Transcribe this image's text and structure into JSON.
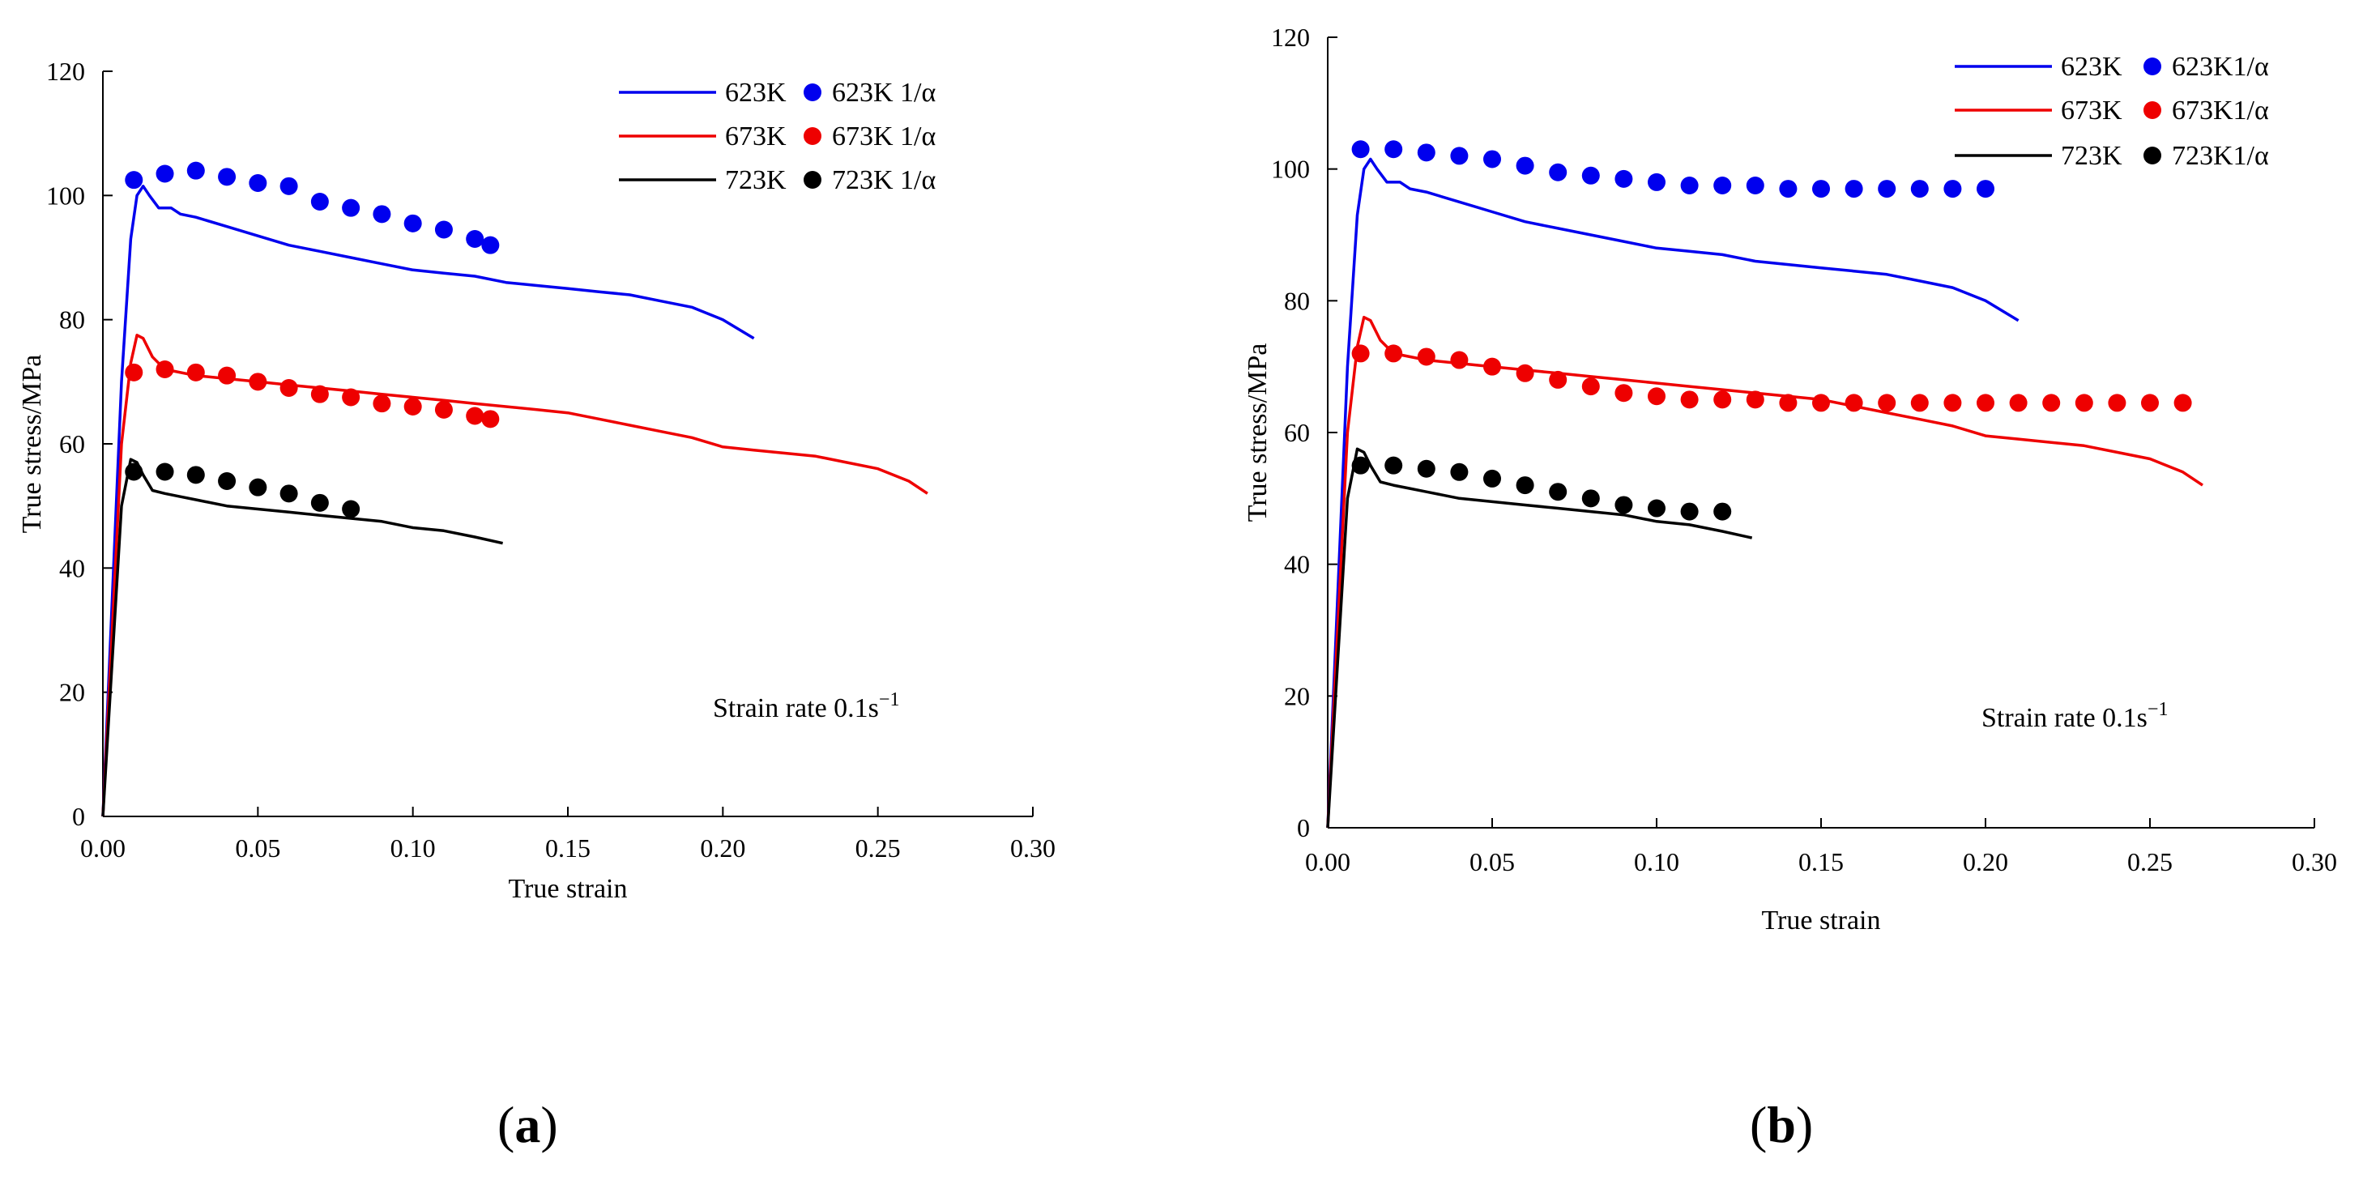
{
  "panels": [
    {
      "label_open": "(",
      "label_letter": "a",
      "label_close": ")",
      "chart_data": {
        "type": "line",
        "xlabel": "True strain",
        "ylabel": "True stress/MPa",
        "xlim": [
          0,
          0.3
        ],
        "ylim": [
          0,
          120
        ],
        "xticks": [
          0.0,
          0.05,
          0.1,
          0.15,
          0.2,
          0.25,
          0.3
        ],
        "xtick_labels": [
          "0.00",
          "0.05",
          "0.10",
          "0.15",
          "0.20",
          "0.25",
          "0.30"
        ],
        "yticks": [
          0,
          20,
          40,
          60,
          80,
          100,
          120
        ],
        "ytick_labels": [
          "0",
          "20",
          "40",
          "60",
          "80",
          "100",
          "120"
        ],
        "annotation": {
          "text": "Strain rate 0.1s",
          "superscript": "−1"
        },
        "legend_position": "top-right",
        "lines": [
          {
            "name": "623K",
            "color": "#0000ee",
            "x": [
              0,
              0.003,
              0.006,
              0.009,
              0.011,
              0.013,
              0.015,
              0.018,
              0.02,
              0.022,
              0.025,
              0.03,
              0.04,
              0.05,
              0.06,
              0.07,
              0.08,
              0.09,
              0.1,
              0.11,
              0.12,
              0.13,
              0.14,
              0.15,
              0.16,
              0.17,
              0.18,
              0.19,
              0.2,
              0.21
            ],
            "y": [
              0,
              35,
              70,
              93,
              100,
              101.5,
              100,
              98,
              98,
              98,
              97,
              96.5,
              95,
              93.5,
              92,
              91,
              90,
              89,
              88,
              87.5,
              87,
              86,
              85.5,
              85,
              84.5,
              84,
              83,
              82,
              80,
              77
            ]
          },
          {
            "name": "673K",
            "color": "#ee0000",
            "x": [
              0,
              0.003,
              0.006,
              0.009,
              0.011,
              0.013,
              0.016,
              0.02,
              0.03,
              0.04,
              0.05,
              0.06,
              0.07,
              0.08,
              0.09,
              0.1,
              0.11,
              0.12,
              0.13,
              0.14,
              0.15,
              0.16,
              0.17,
              0.18,
              0.19,
              0.2,
              0.21,
              0.22,
              0.23,
              0.24,
              0.25,
              0.26,
              0.266
            ],
            "y": [
              0,
              30,
              60,
              73,
              77.5,
              77,
              74,
              72,
              71,
              70.5,
              70,
              69.5,
              69,
              68.5,
              68,
              67.5,
              67,
              66.5,
              66,
              65.5,
              65,
              64,
              63,
              62,
              61,
              59.5,
              59,
              58.5,
              58,
              57,
              56,
              54,
              52
            ]
          },
          {
            "name": "723K",
            "color": "#000000",
            "x": [
              0,
              0.003,
              0.006,
              0.009,
              0.011,
              0.013,
              0.016,
              0.02,
              0.025,
              0.03,
              0.04,
              0.05,
              0.06,
              0.07,
              0.08,
              0.09,
              0.1,
              0.11,
              0.12,
              0.129
            ],
            "y": [
              0,
              25,
              50,
              57.5,
              57,
              55,
              52.5,
              52,
              51.5,
              51,
              50,
              49.5,
              49,
              48.5,
              48,
              47.5,
              46.5,
              46,
              45,
              44
            ]
          }
        ],
        "scatter": [
          {
            "name": "623K 1/α",
            "color": "#0000ee",
            "x": [
              0.01,
              0.02,
              0.03,
              0.04,
              0.05,
              0.06,
              0.07,
              0.08,
              0.09,
              0.1,
              0.11,
              0.12,
              0.125
            ],
            "y": [
              102.5,
              103.5,
              104,
              103,
              102,
              101.5,
              99,
              98,
              97,
              95.5,
              94.5,
              93,
              92
            ]
          },
          {
            "name": "673K 1/α",
            "color": "#ee0000",
            "x": [
              0.01,
              0.02,
              0.03,
              0.04,
              0.05,
              0.06,
              0.07,
              0.08,
              0.09,
              0.1,
              0.11,
              0.12,
              0.125
            ],
            "y": [
              71.5,
              72,
              71.5,
              71,
              70,
              69,
              68,
              67.5,
              66.5,
              66,
              65.5,
              64.5,
              64
            ]
          },
          {
            "name": "723K 1/α",
            "color": "#000000",
            "x": [
              0.01,
              0.02,
              0.03,
              0.04,
              0.05,
              0.06,
              0.07,
              0.08
            ],
            "y": [
              55.5,
              55.5,
              55,
              54,
              53,
              52,
              50.5,
              49.5
            ]
          }
        ]
      }
    },
    {
      "label_open": "(",
      "label_letter": "b",
      "label_close": ")",
      "chart_data": {
        "type": "line",
        "xlabel": "True strain",
        "ylabel": "True stress/MPa",
        "xlim": [
          0,
          0.3
        ],
        "ylim": [
          0,
          120
        ],
        "xticks": [
          0.0,
          0.05,
          0.1,
          0.15,
          0.2,
          0.25,
          0.3
        ],
        "xtick_labels": [
          "0.00",
          "0.05",
          "0.10",
          "0.15",
          "0.20",
          "0.25",
          "0.30"
        ],
        "yticks": [
          0,
          20,
          40,
          60,
          80,
          100,
          120
        ],
        "ytick_labels": [
          "0",
          "20",
          "40",
          "60",
          "80",
          "100",
          "120"
        ],
        "annotation": {
          "text": "Strain rate 0.1s",
          "superscript": "−1"
        },
        "legend_position": "top-right",
        "lines": [
          {
            "name": "623K",
            "color": "#0000ee",
            "x": [
              0,
              0.003,
              0.006,
              0.009,
              0.011,
              0.013,
              0.015,
              0.018,
              0.02,
              0.022,
              0.025,
              0.03,
              0.04,
              0.05,
              0.06,
              0.07,
              0.08,
              0.09,
              0.1,
              0.11,
              0.12,
              0.13,
              0.14,
              0.15,
              0.16,
              0.17,
              0.18,
              0.19,
              0.2,
              0.21
            ],
            "y": [
              0,
              35,
              70,
              93,
              100,
              101.5,
              100,
              98,
              98,
              98,
              97,
              96.5,
              95,
              93.5,
              92,
              91,
              90,
              89,
              88,
              87.5,
              87,
              86,
              85.5,
              85,
              84.5,
              84,
              83,
              82,
              80,
              77
            ]
          },
          {
            "name": "673K",
            "color": "#ee0000",
            "x": [
              0,
              0.003,
              0.006,
              0.009,
              0.011,
              0.013,
              0.016,
              0.02,
              0.03,
              0.04,
              0.05,
              0.06,
              0.07,
              0.08,
              0.09,
              0.1,
              0.11,
              0.12,
              0.13,
              0.14,
              0.15,
              0.16,
              0.17,
              0.18,
              0.19,
              0.2,
              0.21,
              0.22,
              0.23,
              0.24,
              0.25,
              0.26,
              0.266
            ],
            "y": [
              0,
              30,
              60,
              73,
              77.5,
              77,
              74,
              72,
              71,
              70.5,
              70,
              69.5,
              69,
              68.5,
              68,
              67.5,
              67,
              66.5,
              66,
              65.5,
              65,
              64,
              63,
              62,
              61,
              59.5,
              59,
              58.5,
              58,
              57,
              56,
              54,
              52
            ]
          },
          {
            "name": "723K",
            "color": "#000000",
            "x": [
              0,
              0.003,
              0.006,
              0.009,
              0.011,
              0.013,
              0.016,
              0.02,
              0.025,
              0.03,
              0.04,
              0.05,
              0.06,
              0.07,
              0.08,
              0.09,
              0.1,
              0.11,
              0.12,
              0.129
            ],
            "y": [
              0,
              25,
              50,
              57.5,
              57,
              55,
              52.5,
              52,
              51.5,
              51,
              50,
              49.5,
              49,
              48.5,
              48,
              47.5,
              46.5,
              46,
              45,
              44
            ]
          }
        ],
        "scatter": [
          {
            "name": "623K1/α",
            "color": "#0000ee",
            "x": [
              0.01,
              0.02,
              0.03,
              0.04,
              0.05,
              0.06,
              0.07,
              0.08,
              0.09,
              0.1,
              0.11,
              0.12,
              0.13,
              0.14,
              0.15,
              0.16,
              0.17,
              0.18,
              0.19,
              0.2
            ],
            "y": [
              103,
              103,
              102.5,
              102,
              101.5,
              100.5,
              99.5,
              99,
              98.5,
              98,
              97.5,
              97.5,
              97.5,
              97,
              97,
              97,
              97,
              97,
              97,
              97
            ]
          },
          {
            "name": "673K1/α",
            "color": "#ee0000",
            "x": [
              0.01,
              0.02,
              0.03,
              0.04,
              0.05,
              0.06,
              0.07,
              0.08,
              0.09,
              0.1,
              0.11,
              0.12,
              0.13,
              0.14,
              0.15,
              0.16,
              0.17,
              0.18,
              0.19,
              0.2,
              0.21,
              0.22,
              0.23,
              0.24,
              0.25,
              0.26
            ],
            "y": [
              72,
              72,
              71.5,
              71,
              70,
              69,
              68,
              67,
              66,
              65.5,
              65,
              65,
              65,
              64.5,
              64.5,
              64.5,
              64.5,
              64.5,
              64.5,
              64.5,
              64.5,
              64.5,
              64.5,
              64.5,
              64.5,
              64.5
            ]
          },
          {
            "name": "723K1/α",
            "color": "#000000",
            "x": [
              0.01,
              0.02,
              0.03,
              0.04,
              0.05,
              0.06,
              0.07,
              0.08,
              0.09,
              0.1,
              0.11,
              0.12
            ],
            "y": [
              55,
              55,
              54.5,
              54,
              53,
              52,
              51,
              50,
              49,
              48.5,
              48,
              48
            ]
          }
        ]
      }
    }
  ]
}
